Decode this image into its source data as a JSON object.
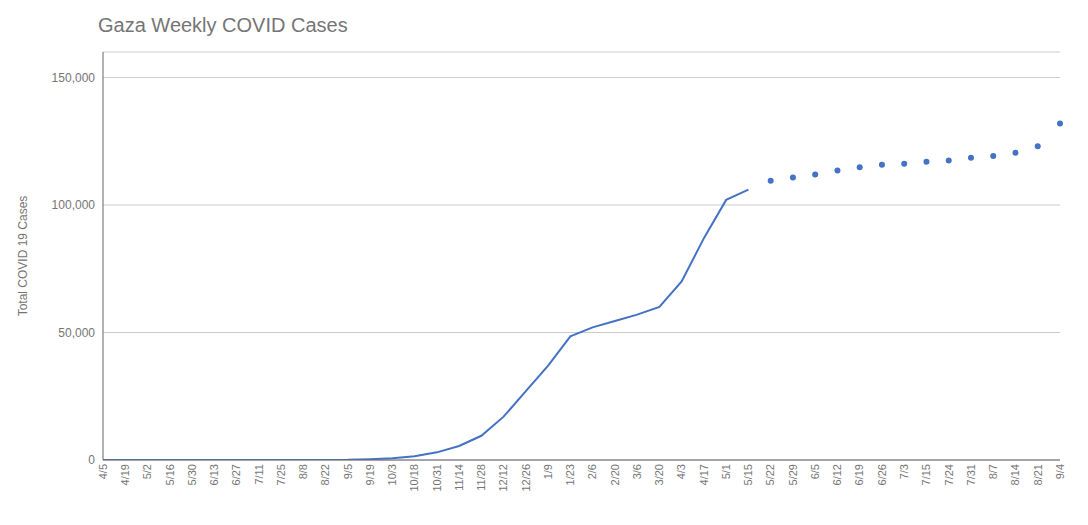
{
  "chart_data": {
    "type": "line",
    "title": "Gaza Weekly COVID Cases",
    "ylabel": "Total COVID 19 Cases",
    "categories": [
      "4/5",
      "4/19",
      "5/2",
      "5/16",
      "5/30",
      "6/13",
      "6/27",
      "7/11",
      "7/25",
      "8/8",
      "8/22",
      "9/5",
      "9/19",
      "10/3",
      "10/18",
      "10/31",
      "11/14",
      "11/28",
      "12/12",
      "12/26",
      "1/9",
      "1/23",
      "2/6",
      "2/20",
      "3/6",
      "3/20",
      "4/3",
      "4/17",
      "5/1",
      "5/15",
      "5/22",
      "5/29",
      "6/5",
      "6/12",
      "6/19",
      "6/26",
      "7/3",
      "7/15",
      "7/24",
      "7/31",
      "8/7",
      "8/14",
      "8/21",
      "9/4"
    ],
    "series": [
      {
        "type": "line",
        "line_style": "solid",
        "color": "#4472c4",
        "values": [
          0,
          0,
          0,
          0,
          0,
          0,
          0,
          0,
          0,
          0,
          0,
          50,
          300,
          700,
          1500,
          3000,
          5500,
          9500,
          17000,
          27000,
          37000,
          48500,
          52000,
          54500,
          57000,
          60000,
          70000,
          87000,
          102000,
          106000,
          null,
          null,
          null,
          null,
          null,
          null,
          null,
          null,
          null,
          null,
          null,
          null,
          null,
          null
        ]
      },
      {
        "type": "scatter",
        "marker": "circle",
        "color": "#4472c4",
        "values": [
          null,
          null,
          null,
          null,
          null,
          null,
          null,
          null,
          null,
          null,
          null,
          null,
          null,
          null,
          null,
          null,
          null,
          null,
          null,
          null,
          null,
          null,
          null,
          null,
          null,
          null,
          null,
          null,
          null,
          null,
          109500,
          110800,
          112000,
          113500,
          114800,
          115800,
          116200,
          117000,
          117500,
          118500,
          119200,
          120500,
          123000,
          132000
        ]
      }
    ],
    "ylim": [
      0,
      160000
    ],
    "yticks": [
      0,
      {
        "value": 50000,
        "label": "50,000"
      },
      {
        "value": 100000,
        "label": "100,000"
      },
      {
        "value": 150000,
        "label": "150,000"
      }
    ],
    "grid": true
  }
}
